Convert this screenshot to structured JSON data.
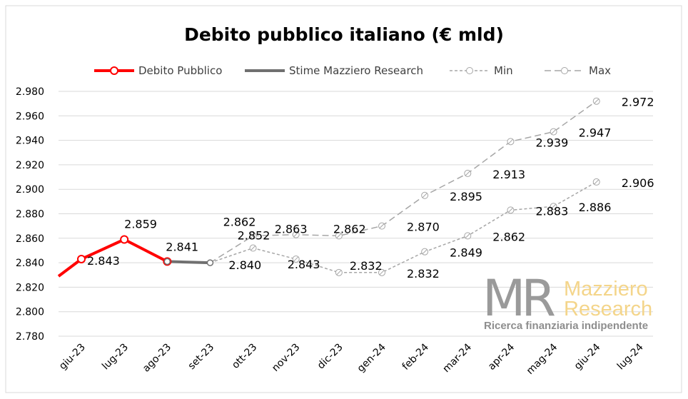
{
  "chart_data": {
    "type": "line",
    "title": "Debito pubblico italiano (€ mld)",
    "categories": [
      "giu-23",
      "lug-23",
      "ago-23",
      "set-23",
      "ott-23",
      "nov-23",
      "dic-23",
      "gen-24",
      "feb-24",
      "mar-24",
      "apr-24",
      "mag-24",
      "giu-24",
      "lug-24"
    ],
    "ylim": [
      2780,
      2980
    ],
    "yticks": [
      2780,
      2800,
      2820,
      2840,
      2860,
      2880,
      2900,
      2920,
      2940,
      2960,
      2980
    ],
    "ytick_labels": [
      "2.780",
      "2.800",
      "2.820",
      "2.840",
      "2.860",
      "2.880",
      "2.900",
      "2.920",
      "2.940",
      "2.960",
      "2.980"
    ],
    "grid": true,
    "legend_position": "top",
    "series": [
      {
        "name": "Debito Pubblico",
        "color": "#ff0000",
        "style": "solid",
        "lead_in": 2829,
        "values": [
          2843,
          2859,
          2841,
          null,
          null,
          null,
          null,
          null,
          null,
          null,
          null,
          null,
          null,
          null
        ],
        "labels": [
          "2.843",
          "2.859",
          "2.841",
          null,
          null,
          null,
          null,
          null,
          null,
          null,
          null,
          null,
          null,
          null
        ]
      },
      {
        "name": "Stime Mazziero Research",
        "color": "#707070",
        "style": "solid",
        "values": [
          null,
          null,
          2841,
          2840,
          null,
          null,
          null,
          null,
          null,
          null,
          null,
          null,
          null,
          null
        ],
        "labels": [
          null,
          null,
          null,
          "2.840",
          null,
          null,
          null,
          null,
          null,
          null,
          null,
          null,
          null,
          null
        ]
      },
      {
        "name": "Min",
        "color": "#a6a6a6",
        "style": "dashed-short",
        "values": [
          null,
          null,
          null,
          2840,
          2852,
          2843,
          2832,
          2832,
          2849,
          2862,
          2883,
          2886,
          2906,
          null
        ],
        "labels": [
          null,
          null,
          null,
          null,
          "2.852",
          "2.843",
          "2.832",
          "2.832",
          "2.849",
          "2.862",
          "2.883",
          "2.886",
          "2.906",
          null
        ]
      },
      {
        "name": "Max",
        "color": "#a6a6a6",
        "style": "dashed-long",
        "values": [
          null,
          null,
          null,
          2840,
          2862,
          2863,
          2862,
          2870,
          2895,
          2913,
          2939,
          2947,
          2972,
          null
        ],
        "labels": [
          null,
          null,
          null,
          null,
          "2.862",
          "2.863",
          "2.862",
          "2.870",
          "2.895",
          "2.913",
          "2.939",
          "2.947",
          "2.972",
          null
        ]
      }
    ]
  },
  "watermark": {
    "logo": "MR",
    "name_line1": "Mazziero",
    "name_line2": "Research",
    "tagline": "Ricerca finanziaria indipendente"
  }
}
